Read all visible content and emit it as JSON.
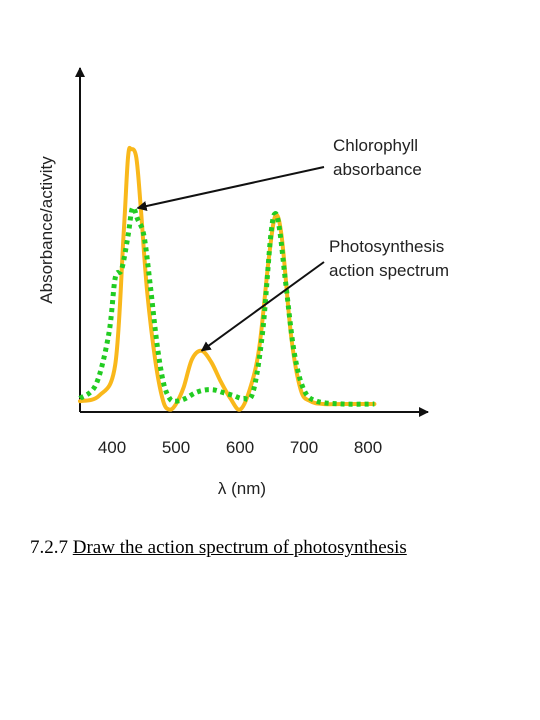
{
  "chart_data": {
    "type": "line",
    "ylabel": "Absorbance/activity",
    "xlabel": "λ (nm)",
    "xlim": [
      350,
      850
    ],
    "ylim": [
      0,
      1.1
    ],
    "x_ticks": [
      "400",
      "500",
      "600",
      "700",
      "800"
    ],
    "grid": false,
    "annotations": [
      {
        "lines": [
          "Chlorophyll",
          "absorbance"
        ],
        "points_to": {
          "x": 440,
          "y": 0.7
        }
      },
      {
        "lines": [
          "Photosynthesis",
          "action spectrum"
        ],
        "points_to": {
          "x": 540,
          "y": 0.19
        }
      }
    ],
    "series": [
      {
        "color": "#f9b81b",
        "style": "solid",
        "x": [
          350,
          380,
          405,
          418,
          425,
          430,
          438,
          445,
          455,
          468,
          480,
          490,
          500,
          512,
          525,
          540,
          555,
          570,
          585,
          600,
          615,
          630,
          645,
          655,
          665,
          680,
          695,
          710,
          730,
          760,
          800,
          810
        ],
        "y": [
          0.01,
          0.03,
          0.14,
          0.6,
          0.88,
          0.91,
          0.88,
          0.7,
          0.4,
          0.15,
          0.01,
          -0.02,
          0.0,
          0.06,
          0.16,
          0.19,
          0.15,
          0.08,
          0.02,
          -0.02,
          0.05,
          0.2,
          0.52,
          0.67,
          0.6,
          0.24,
          0.05,
          0.01,
          0.0,
          0.0,
          0.0,
          0.0
        ]
      },
      {
        "color": "#22cc22",
        "style": "dotted",
        "x": [
          350,
          375,
          395,
          405,
          415,
          425,
          432,
          440,
          450,
          460,
          470,
          480,
          490,
          500,
          515,
          530,
          545,
          560,
          575,
          590,
          605,
          620,
          635,
          648,
          655,
          662,
          672,
          685,
          700,
          720,
          760,
          810
        ],
        "y": [
          0.02,
          0.07,
          0.25,
          0.45,
          0.48,
          0.6,
          0.7,
          0.66,
          0.6,
          0.42,
          0.22,
          0.08,
          0.02,
          0.01,
          0.02,
          0.04,
          0.05,
          0.05,
          0.04,
          0.03,
          0.02,
          0.04,
          0.25,
          0.6,
          0.68,
          0.62,
          0.42,
          0.18,
          0.05,
          0.01,
          0.0,
          0.0
        ]
      }
    ]
  },
  "caption": {
    "number": "7.2.7",
    "text": "Draw the action spectrum of photosynthesis"
  }
}
